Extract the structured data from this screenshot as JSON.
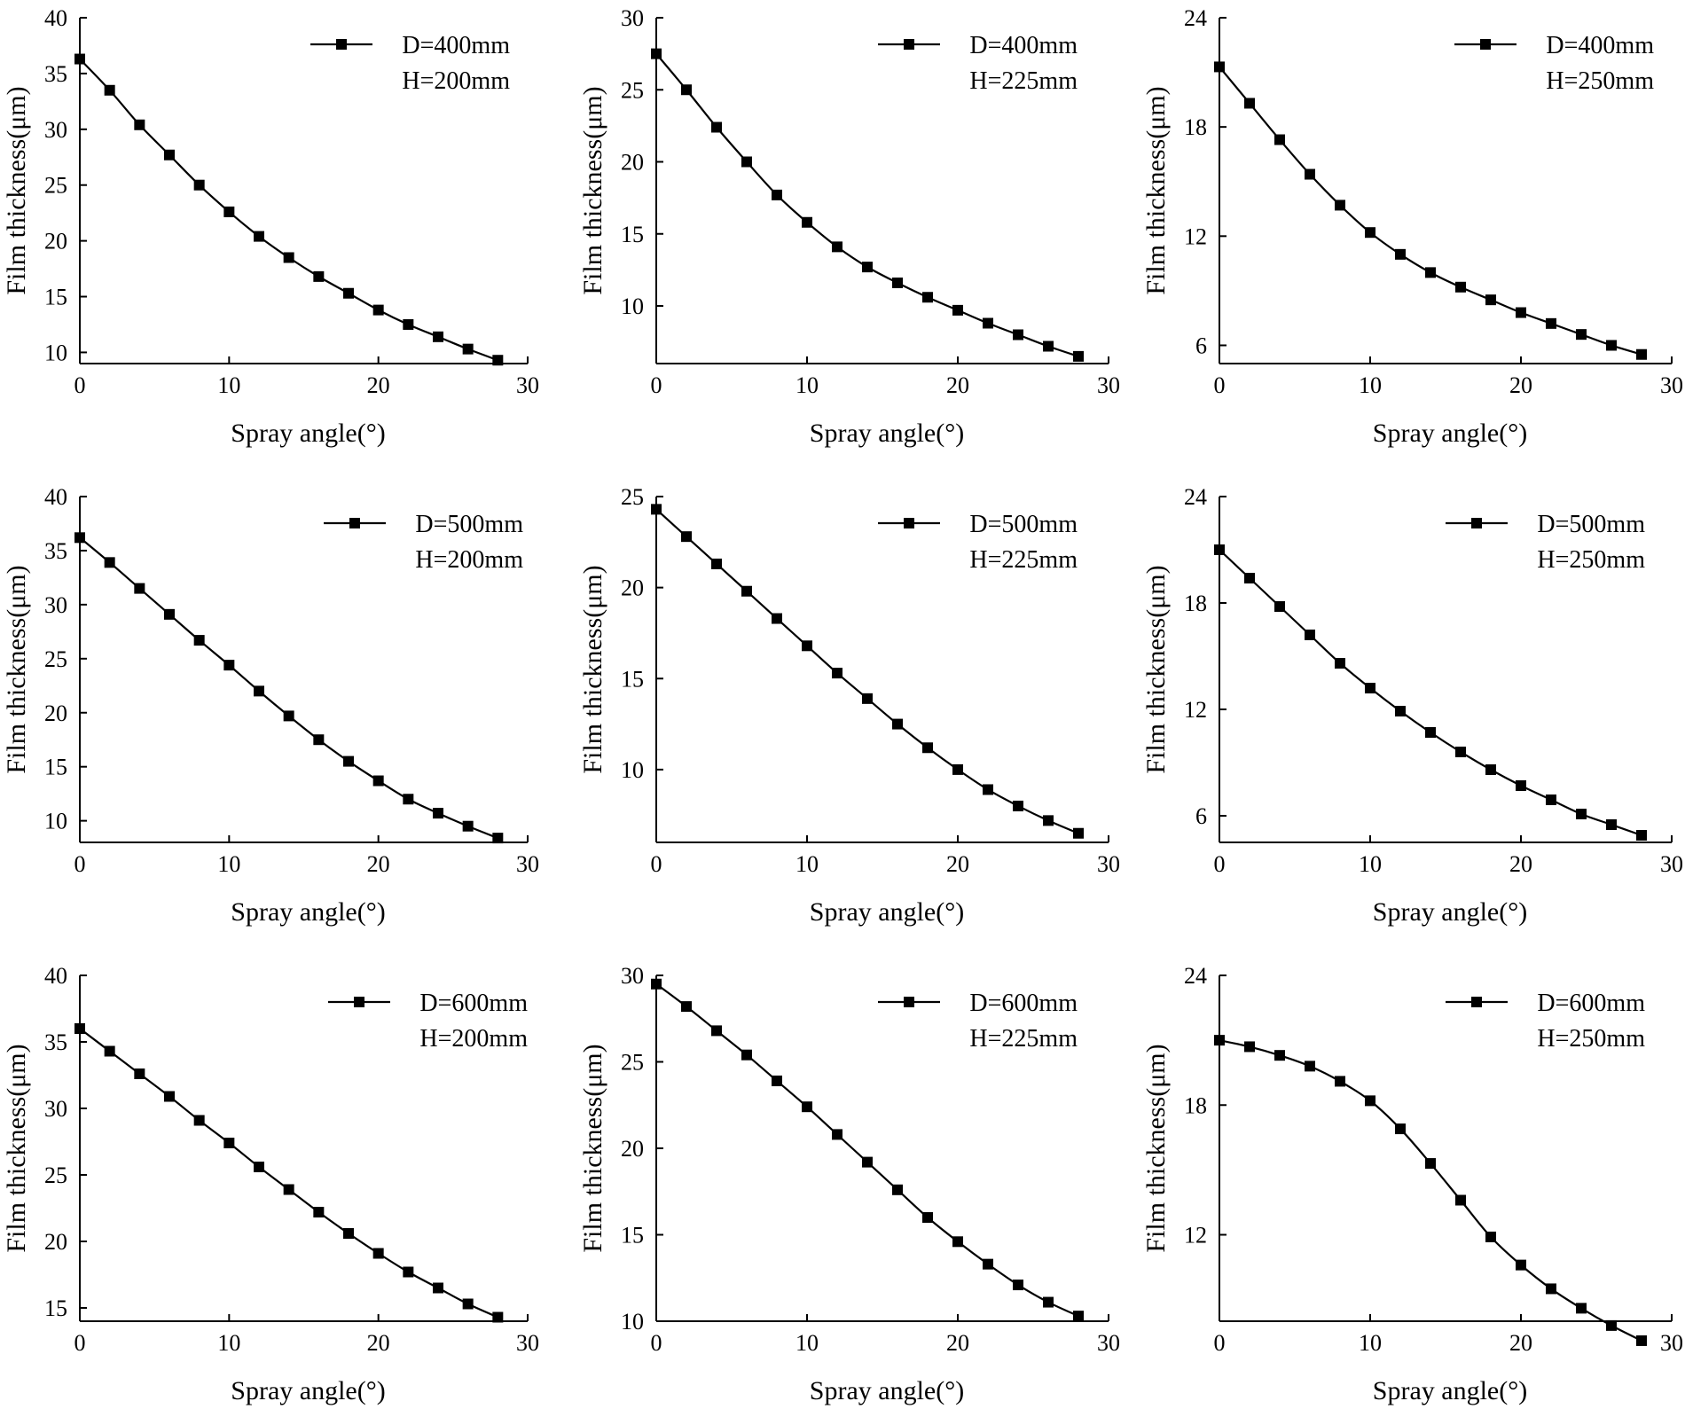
{
  "chart_data": [
    {
      "type": "line",
      "legend": [
        "D=400mm",
        "H=200mm"
      ],
      "xlabel": "Spray angle(°)",
      "ylabel": "Film thickness(μm)",
      "xlim": [
        0,
        30
      ],
      "xticks": [
        "0",
        "10",
        "20",
        "30"
      ],
      "ylim": [
        9,
        40
      ],
      "yticks": [
        "10",
        "15",
        "20",
        "25",
        "30",
        "35",
        "40"
      ],
      "x": [
        0,
        2,
        4,
        6,
        8,
        10,
        12,
        14,
        16,
        18,
        20,
        22,
        24,
        26,
        28
      ],
      "values": [
        36.3,
        33.5,
        30.4,
        27.7,
        25.0,
        22.6,
        20.4,
        18.5,
        16.8,
        15.3,
        13.8,
        12.5,
        11.4,
        10.3,
        9.3
      ]
    },
    {
      "type": "line",
      "legend": [
        "D=400mm",
        "H=225mm"
      ],
      "xlabel": "Spray angle(°)",
      "ylabel": "Film thickness(μm)",
      "xlim": [
        0,
        30
      ],
      "xticks": [
        "0",
        "10",
        "20",
        "30"
      ],
      "ylim": [
        6,
        30
      ],
      "yticks": [
        "10",
        "15",
        "20",
        "25",
        "30"
      ],
      "x": [
        0,
        2,
        4,
        6,
        8,
        10,
        12,
        14,
        16,
        18,
        20,
        22,
        24,
        26,
        28
      ],
      "values": [
        27.5,
        25.0,
        22.4,
        20.0,
        17.7,
        15.8,
        14.1,
        12.7,
        11.6,
        10.6,
        9.7,
        8.8,
        8.0,
        7.2,
        6.5
      ]
    },
    {
      "type": "line",
      "legend": [
        "D=400mm",
        "H=250mm"
      ],
      "xlabel": "Spray angle(°)",
      "ylabel": "Film thickness(μm)",
      "xlim": [
        0,
        30
      ],
      "xticks": [
        "0",
        "10",
        "20",
        "30"
      ],
      "ylim": [
        5,
        24
      ],
      "yticks": [
        "6",
        "12",
        "18",
        "24"
      ],
      "x": [
        0,
        2,
        4,
        6,
        8,
        10,
        12,
        14,
        16,
        18,
        20,
        22,
        24,
        26,
        28
      ],
      "values": [
        21.3,
        19.3,
        17.3,
        15.4,
        13.7,
        12.2,
        11.0,
        10.0,
        9.2,
        8.5,
        7.8,
        7.2,
        6.6,
        6.0,
        5.5
      ]
    },
    {
      "type": "line",
      "legend": [
        "D=500mm",
        "H=200mm"
      ],
      "xlabel": "Spray angle(°)",
      "ylabel": "Film thickness(μm)",
      "xlim": [
        0,
        30
      ],
      "xticks": [
        "0",
        "10",
        "20",
        "30"
      ],
      "ylim": [
        8,
        40
      ],
      "yticks": [
        "10",
        "15",
        "20",
        "25",
        "30",
        "35",
        "40"
      ],
      "x": [
        0,
        2,
        4,
        6,
        8,
        10,
        12,
        14,
        16,
        18,
        20,
        22,
        24,
        26,
        28
      ],
      "values": [
        36.2,
        33.9,
        31.5,
        29.1,
        26.7,
        24.4,
        22.0,
        19.7,
        17.5,
        15.5,
        13.7,
        12.0,
        10.7,
        9.5,
        8.4
      ]
    },
    {
      "type": "line",
      "legend": [
        "D=500mm",
        "H=225mm"
      ],
      "xlabel": "Spray angle(°)",
      "ylabel": "Film thickness(μm)",
      "xlim": [
        0,
        30
      ],
      "xticks": [
        "0",
        "10",
        "20",
        "30"
      ],
      "ylim": [
        6,
        25
      ],
      "yticks": [
        "10",
        "15",
        "20",
        "25"
      ],
      "x": [
        0,
        2,
        4,
        6,
        8,
        10,
        12,
        14,
        16,
        18,
        20,
        22,
        24,
        26,
        28
      ],
      "values": [
        24.3,
        22.8,
        21.3,
        19.8,
        18.3,
        16.8,
        15.3,
        13.9,
        12.5,
        11.2,
        10.0,
        8.9,
        8.0,
        7.2,
        6.5
      ]
    },
    {
      "type": "line",
      "legend": [
        "D=500mm",
        "H=250mm"
      ],
      "xlabel": "Spray angle(°)",
      "ylabel": "Film thickness(μm)",
      "xlim": [
        0,
        30
      ],
      "xticks": [
        "0",
        "10",
        "20",
        "30"
      ],
      "ylim": [
        4.5,
        24
      ],
      "yticks": [
        "6",
        "12",
        "18",
        "24"
      ],
      "x": [
        0,
        2,
        4,
        6,
        8,
        10,
        12,
        14,
        16,
        18,
        20,
        22,
        24,
        26,
        28
      ],
      "values": [
        21.0,
        19.4,
        17.8,
        16.2,
        14.6,
        13.2,
        11.9,
        10.7,
        9.6,
        8.6,
        7.7,
        6.9,
        6.1,
        5.5,
        4.9
      ]
    },
    {
      "type": "line",
      "legend": [
        "D=600mm",
        "H=200mm"
      ],
      "xlabel": "Spray angle(°)",
      "ylabel": "Film thickness(μm)",
      "xlim": [
        0,
        30
      ],
      "xticks": [
        "0",
        "10",
        "20",
        "30"
      ],
      "ylim": [
        14,
        40
      ],
      "yticks": [
        "15",
        "20",
        "25",
        "30",
        "35",
        "40"
      ],
      "x": [
        0,
        2,
        4,
        6,
        8,
        10,
        12,
        14,
        16,
        18,
        20,
        22,
        24,
        26,
        28
      ],
      "values": [
        36.0,
        34.3,
        32.6,
        30.9,
        29.1,
        27.4,
        25.6,
        23.9,
        22.2,
        20.6,
        19.1,
        17.7,
        16.5,
        15.3,
        14.3
      ]
    },
    {
      "type": "line",
      "legend": [
        "D=600mm",
        "H=225mm"
      ],
      "xlabel": "Spray angle(°)",
      "ylabel": "Film thickness(μm)",
      "xlim": [
        0,
        30
      ],
      "xticks": [
        "0",
        "10",
        "20",
        "30"
      ],
      "ylim": [
        10,
        30
      ],
      "yticks": [
        "10",
        "15",
        "20",
        "25",
        "30"
      ],
      "x": [
        0,
        2,
        4,
        6,
        8,
        10,
        12,
        14,
        16,
        18,
        20,
        22,
        24,
        26,
        28
      ],
      "values": [
        29.5,
        28.2,
        26.8,
        25.4,
        23.9,
        22.4,
        20.8,
        19.2,
        17.6,
        16.0,
        14.6,
        13.3,
        12.1,
        11.1,
        10.3
      ]
    },
    {
      "type": "line",
      "legend": [
        "D=600mm",
        "H=250mm"
      ],
      "xlabel": "Spray angle(°)",
      "ylabel": "Film thickness(μm)",
      "xlim": [
        0,
        30
      ],
      "xticks": [
        "0",
        "10",
        "20",
        "30"
      ],
      "ylim": [
        8,
        24
      ],
      "yticks": [
        "12",
        "18",
        "24"
      ],
      "x": [
        0,
        2,
        4,
        6,
        8,
        10,
        12,
        14,
        16,
        18,
        20,
        22,
        24,
        26,
        28
      ],
      "values": [
        21.0,
        20.7,
        20.3,
        19.8,
        19.1,
        18.2,
        16.9,
        15.3,
        13.6,
        11.9,
        10.6,
        9.5,
        8.6,
        7.8,
        7.1
      ]
    }
  ]
}
